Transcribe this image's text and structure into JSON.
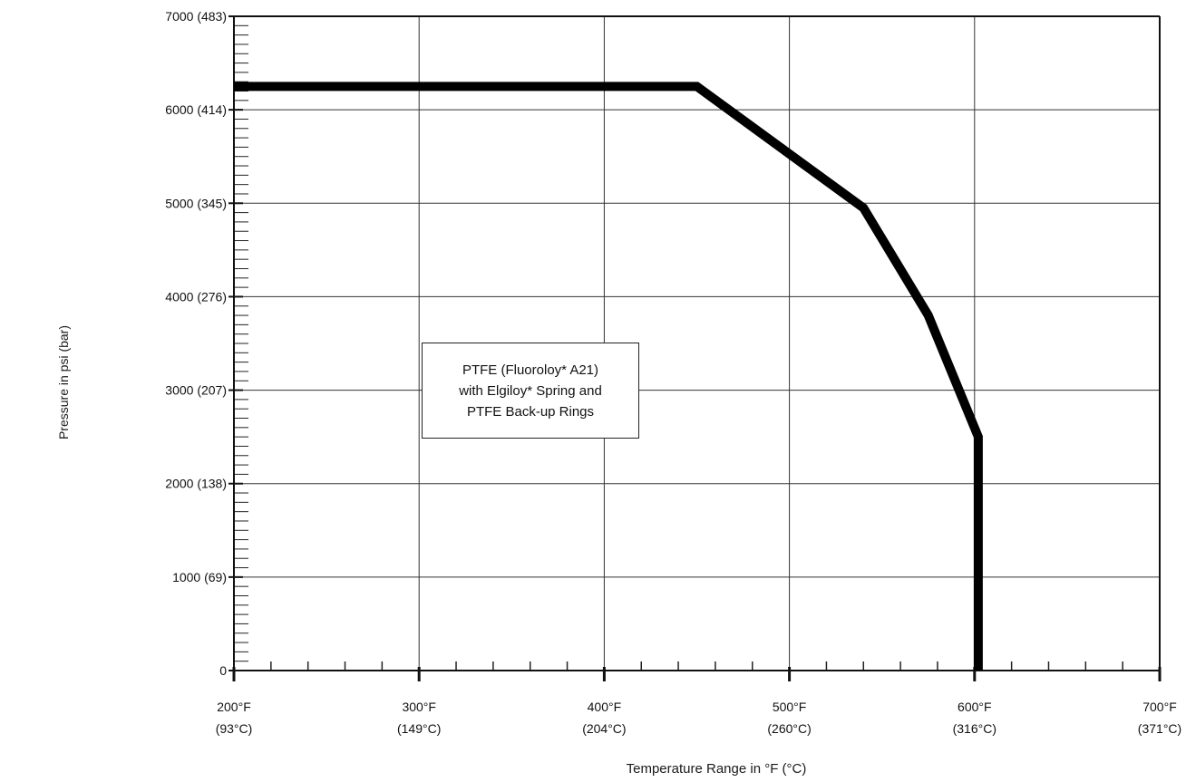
{
  "chart_data": {
    "type": "line",
    "xlabel": "Temperature Range in °F (°C)",
    "ylabel": "Pressure in psi (bar)",
    "xlim": [
      200,
      700
    ],
    "ylim": [
      0,
      7000
    ],
    "grid": true,
    "x_ticks": [
      {
        "value": 200,
        "label_f": "200°F",
        "label_c": "(93°C)"
      },
      {
        "value": 300,
        "label_f": "300°F",
        "label_c": "(149°C)"
      },
      {
        "value": 400,
        "label_f": "400°F",
        "label_c": "(204°C)"
      },
      {
        "value": 500,
        "label_f": "500°F",
        "label_c": "(260°C)"
      },
      {
        "value": 600,
        "label_f": "600°F",
        "label_c": "(316°C)"
      },
      {
        "value": 700,
        "label_f": "700°F",
        "label_c": "(371°C)"
      }
    ],
    "y_ticks": [
      {
        "value": 0,
        "label": "0"
      },
      {
        "value": 1000,
        "label": "1000 (69)"
      },
      {
        "value": 2000,
        "label": "2000 (138)"
      },
      {
        "value": 3000,
        "label": "3000 (207)"
      },
      {
        "value": 4000,
        "label": "4000 (276)"
      },
      {
        "value": 5000,
        "label": "5000 (345)"
      },
      {
        "value": 6000,
        "label": "6000 (414)"
      },
      {
        "value": 7000,
        "label": "7000 (483)"
      }
    ],
    "series": [
      {
        "x": [
          200,
          450,
          540,
          575,
          602,
          602
        ],
        "y": [
          6250,
          6250,
          4950,
          3800,
          2500,
          0
        ]
      }
    ],
    "annotation": {
      "lines": [
        "PTFE (Fluoroloy* A21)",
        "with Elgiloy* Spring and",
        "PTFE Back-up Rings"
      ]
    }
  }
}
